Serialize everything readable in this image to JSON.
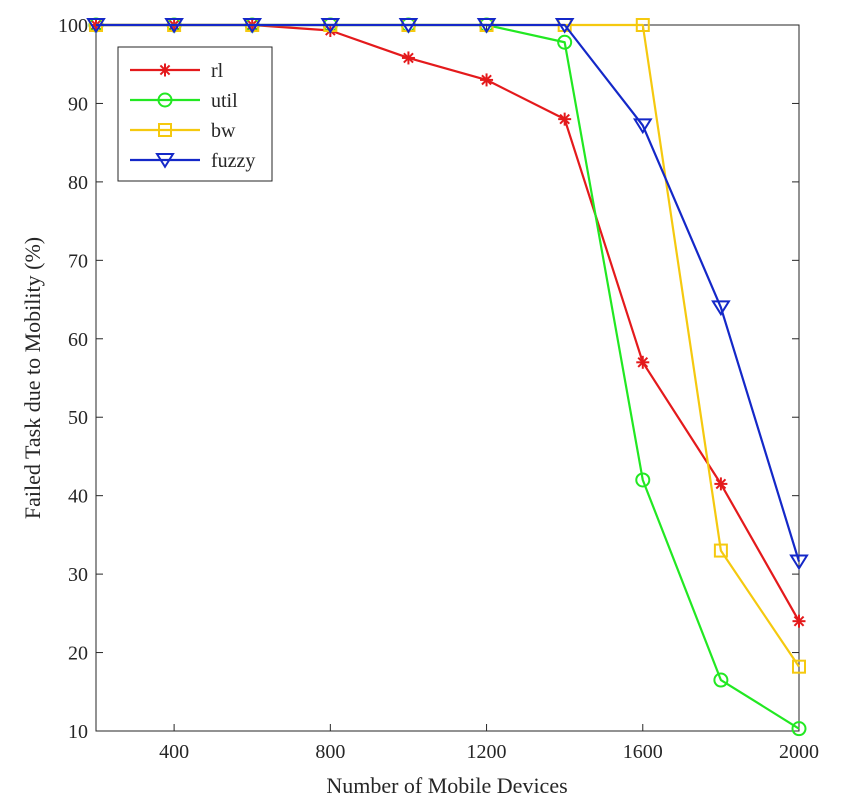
{
  "chart_data": {
    "type": "line",
    "title": "",
    "xlabel": "Number of Mobile Devices",
    "ylabel": "Failed Task due to Mobility (%)",
    "xlim": [
      200,
      2000
    ],
    "ylim": [
      10,
      100
    ],
    "xticks": [
      400,
      800,
      1200,
      1600,
      2000
    ],
    "yticks": [
      10,
      20,
      30,
      40,
      50,
      60,
      70,
      80,
      90,
      100
    ],
    "grid": false,
    "legend_position": "top-left",
    "x": [
      200,
      400,
      600,
      800,
      1000,
      1200,
      1400,
      1600,
      1800,
      2000
    ],
    "series": [
      {
        "name": "rl",
        "color": "#e41a1c",
        "marker": "asterisk",
        "values": [
          100,
          100,
          100,
          99.3,
          95.8,
          93,
          88,
          57,
          41.5,
          24
        ]
      },
      {
        "name": "util",
        "color": "#22e822",
        "marker": "circle",
        "values": [
          100,
          100,
          100,
          100,
          100,
          100,
          97.8,
          42,
          16.5,
          10.3
        ]
      },
      {
        "name": "bw",
        "color": "#f5c90f",
        "marker": "square",
        "values": [
          100,
          100,
          100,
          100,
          100,
          100,
          100,
          100,
          33,
          18.2
        ]
      },
      {
        "name": "fuzzy",
        "color": "#1428c8",
        "marker": "triangle-down",
        "values": [
          100,
          100,
          100,
          100,
          100,
          100,
          100,
          87.2,
          64,
          31.6
        ]
      }
    ]
  }
}
